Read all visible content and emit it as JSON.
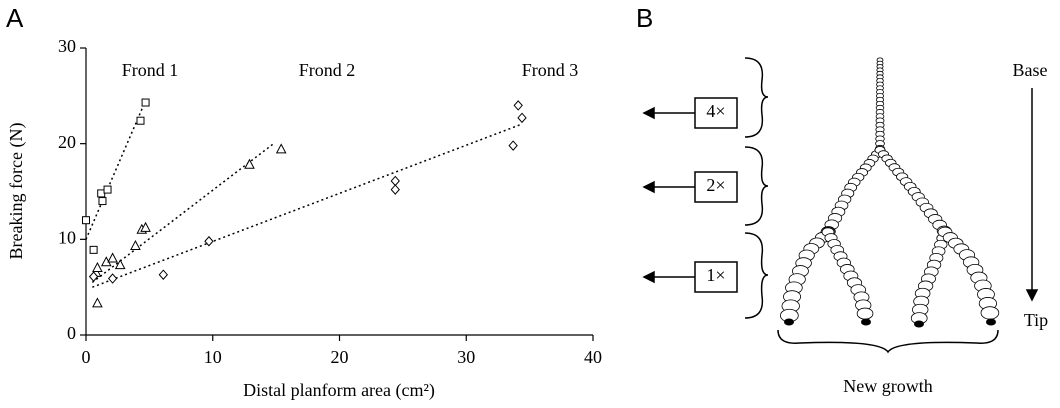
{
  "chart_data": {
    "type": "scatter",
    "panel_label": "A",
    "xlabel": "Distal planform area (cm²)",
    "ylabel": "Breaking force (N)",
    "xlim": [
      0,
      40
    ],
    "xticks": [
      0,
      10,
      20,
      30,
      40
    ],
    "ylim": [
      0,
      30
    ],
    "yticks": [
      0,
      10,
      20,
      30
    ],
    "grid": false,
    "series": [
      {
        "name": "Frond 1",
        "marker": "square",
        "color": "#000000",
        "x": [
          0,
          0.6,
          1.2,
          1.3,
          1.7,
          4.3,
          4.7
        ],
        "values": [
          12.0,
          8.9,
          14.8,
          14.0,
          15.2,
          22.4,
          24.3
        ],
        "fit": {
          "x": [
            0,
            4.7
          ],
          "y": [
            10,
            24.5
          ]
        }
      },
      {
        "name": "Frond 2",
        "marker": "triangle",
        "color": "#000000",
        "x": [
          0.9,
          0.8,
          0.9,
          1.6,
          2.1,
          2.7,
          3.9,
          4.4,
          4.7,
          12.9,
          15.4
        ],
        "values": [
          3.3,
          6.5,
          7.0,
          7.6,
          8.0,
          7.3,
          9.3,
          11.0,
          11.2,
          17.8,
          19.4
        ],
        "fit": {
          "x": [
            0.5,
            14.8
          ],
          "y": [
            5.5,
            20
          ]
        }
      },
      {
        "name": "Frond 3",
        "marker": "diamond",
        "color": "#000000",
        "x": [
          0.6,
          2.1,
          6.1,
          9.7,
          24.4,
          24.4,
          34.1,
          34.4,
          33.7
        ],
        "values": [
          6.1,
          5.9,
          6.3,
          9.8,
          16.1,
          15.2,
          24.0,
          22.7,
          19.8
        ],
        "fit": {
          "x": [
            0.5,
            34.3
          ],
          "y": [
            5,
            22
          ]
        }
      }
    ]
  },
  "diagram": {
    "panel_label": "B",
    "base": "Base",
    "tip": "Tip",
    "bottom_label": "New growth",
    "multipliers": [
      "4×",
      "2×",
      "1×"
    ]
  }
}
